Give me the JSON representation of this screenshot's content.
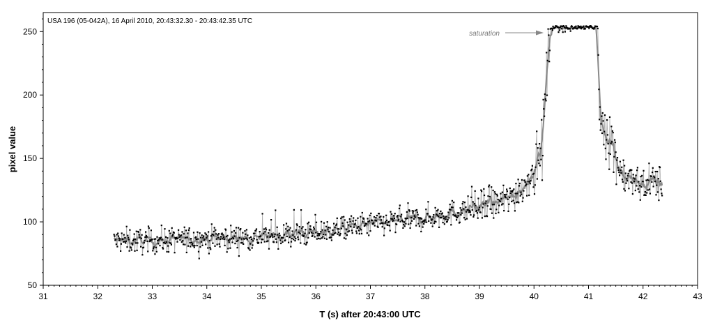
{
  "chart_data": {
    "type": "scatter",
    "title": "USA 196 (05-042A), 16 April 2010, 20:43:32.30 - 20:43:42.35 UTC",
    "xlabel": "T (s) after 20:43:00 UTC",
    "ylabel": "pixel value",
    "xlim": [
      31,
      43
    ],
    "ylim": [
      50,
      265
    ],
    "xticks": [
      31,
      32,
      33,
      34,
      35,
      36,
      37,
      38,
      39,
      40,
      41,
      42,
      43
    ],
    "yticks": [
      50,
      100,
      150,
      200,
      250
    ],
    "grid": false,
    "annotation": {
      "text": "saturation",
      "target": [
        40.28,
        254
      ]
    },
    "data_range": {
      "start": 32.3,
      "end": 42.35,
      "step": 0.01
    },
    "series": [
      {
        "style": "points",
        "color": "#000000",
        "description_profile": [
          [
            32.3,
            85
          ],
          [
            33.0,
            85
          ],
          [
            34.0,
            87
          ],
          [
            35.0,
            88
          ],
          [
            36.0,
            91
          ],
          [
            36.5,
            95
          ],
          [
            37.0,
            98
          ],
          [
            38.0,
            103
          ],
          [
            38.5,
            107
          ],
          [
            39.0,
            111
          ],
          [
            39.5,
            117
          ],
          [
            39.8,
            128
          ],
          [
            40.0,
            140
          ],
          [
            40.15,
            160
          ],
          [
            40.22,
            205
          ],
          [
            40.27,
            240
          ],
          [
            40.3,
            253
          ],
          [
            41.17,
            253
          ],
          [
            41.2,
            183
          ],
          [
            41.4,
            165
          ],
          [
            41.6,
            140
          ],
          [
            41.8,
            131
          ],
          [
            42.0,
            130
          ],
          [
            42.2,
            132
          ],
          [
            42.35,
            130
          ]
        ]
      },
      {
        "style": "raw-line",
        "color": "#aaaaaa"
      },
      {
        "style": "moving-average",
        "color": "#888888"
      }
    ]
  }
}
